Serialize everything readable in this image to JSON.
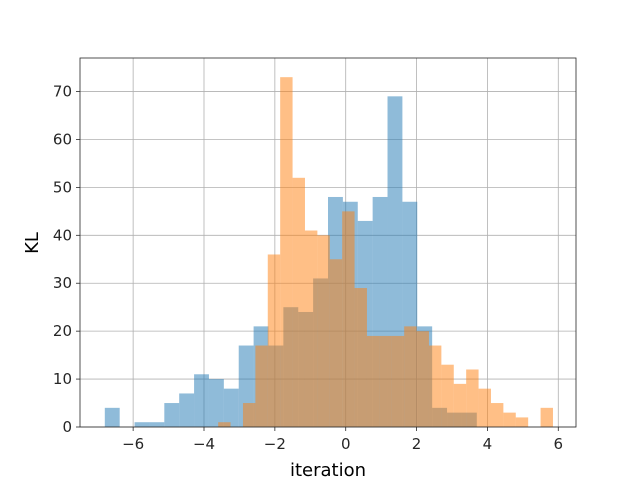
{
  "chart_data": {
    "type": "bar",
    "subtype": "overlapping-histogram",
    "title": "",
    "xlabel": "iteration",
    "ylabel": "KL",
    "xlim": [
      -7.5,
      6.5
    ],
    "ylim": [
      0,
      77
    ],
    "x_ticks": [
      -6,
      -4,
      -2,
      0,
      2,
      4,
      6
    ],
    "x_tick_labels": [
      "−6",
      "−4",
      "−2",
      "0",
      "2",
      "4",
      "6"
    ],
    "y_ticks": [
      0,
      10,
      20,
      30,
      40,
      50,
      60,
      70
    ],
    "y_tick_labels": [
      "0",
      "10",
      "20",
      "30",
      "40",
      "50",
      "60",
      "70"
    ],
    "grid": true,
    "legend": "none",
    "series": [
      {
        "color": "#1f77b4",
        "opacity": 0.5,
        "bins": [
          [
            -6.8,
            -6.38,
            4
          ],
          [
            -6.38,
            -5.96,
            0
          ],
          [
            -5.96,
            -5.54,
            1
          ],
          [
            -5.54,
            -5.12,
            1
          ],
          [
            -5.12,
            -4.7,
            5
          ],
          [
            -4.7,
            -4.28,
            7
          ],
          [
            -4.28,
            -3.86,
            11
          ],
          [
            -3.86,
            -3.44,
            10
          ],
          [
            -3.44,
            -3.02,
            8
          ],
          [
            -3.02,
            -2.6,
            17
          ],
          [
            -2.6,
            -2.18,
            21
          ],
          [
            -2.18,
            -1.76,
            17
          ],
          [
            -1.76,
            -1.34,
            25
          ],
          [
            -1.34,
            -0.92,
            24
          ],
          [
            -0.92,
            -0.5,
            31
          ],
          [
            -0.5,
            -0.08,
            48
          ],
          [
            -0.08,
            0.34,
            47
          ],
          [
            0.34,
            0.76,
            43
          ],
          [
            0.76,
            1.18,
            48
          ],
          [
            1.18,
            1.6,
            69
          ],
          [
            1.6,
            2.02,
            47
          ],
          [
            2.02,
            2.44,
            21
          ],
          [
            2.44,
            2.86,
            4
          ],
          [
            2.86,
            3.28,
            3
          ],
          [
            3.28,
            3.7,
            3
          ],
          [
            3.7,
            4.12,
            0
          ]
        ]
      },
      {
        "color": "#ff7f0e",
        "opacity": 0.5,
        "bins": [
          [
            -3.6,
            -3.25,
            1
          ],
          [
            -3.25,
            -2.9,
            0
          ],
          [
            -2.9,
            -2.55,
            5
          ],
          [
            -2.55,
            -2.2,
            17
          ],
          [
            -2.2,
            -1.85,
            36
          ],
          [
            -1.85,
            -1.5,
            73
          ],
          [
            -1.5,
            -1.15,
            52
          ],
          [
            -1.15,
            -0.8,
            41
          ],
          [
            -0.8,
            -0.45,
            40
          ],
          [
            -0.45,
            -0.1,
            35
          ],
          [
            -0.1,
            0.25,
            45
          ],
          [
            0.25,
            0.6,
            29
          ],
          [
            0.6,
            0.95,
            19
          ],
          [
            0.95,
            1.3,
            19
          ],
          [
            1.3,
            1.65,
            19
          ],
          [
            1.65,
            2.0,
            21
          ],
          [
            2.0,
            2.35,
            20
          ],
          [
            2.35,
            2.7,
            17
          ],
          [
            2.7,
            3.05,
            13
          ],
          [
            3.05,
            3.4,
            9
          ],
          [
            3.4,
            3.75,
            12
          ],
          [
            3.75,
            4.1,
            8
          ],
          [
            4.1,
            4.45,
            5
          ],
          [
            4.45,
            4.8,
            3
          ],
          [
            4.8,
            5.15,
            2
          ],
          [
            5.15,
            5.5,
            0
          ],
          [
            5.5,
            5.85,
            4
          ]
        ]
      }
    ]
  }
}
